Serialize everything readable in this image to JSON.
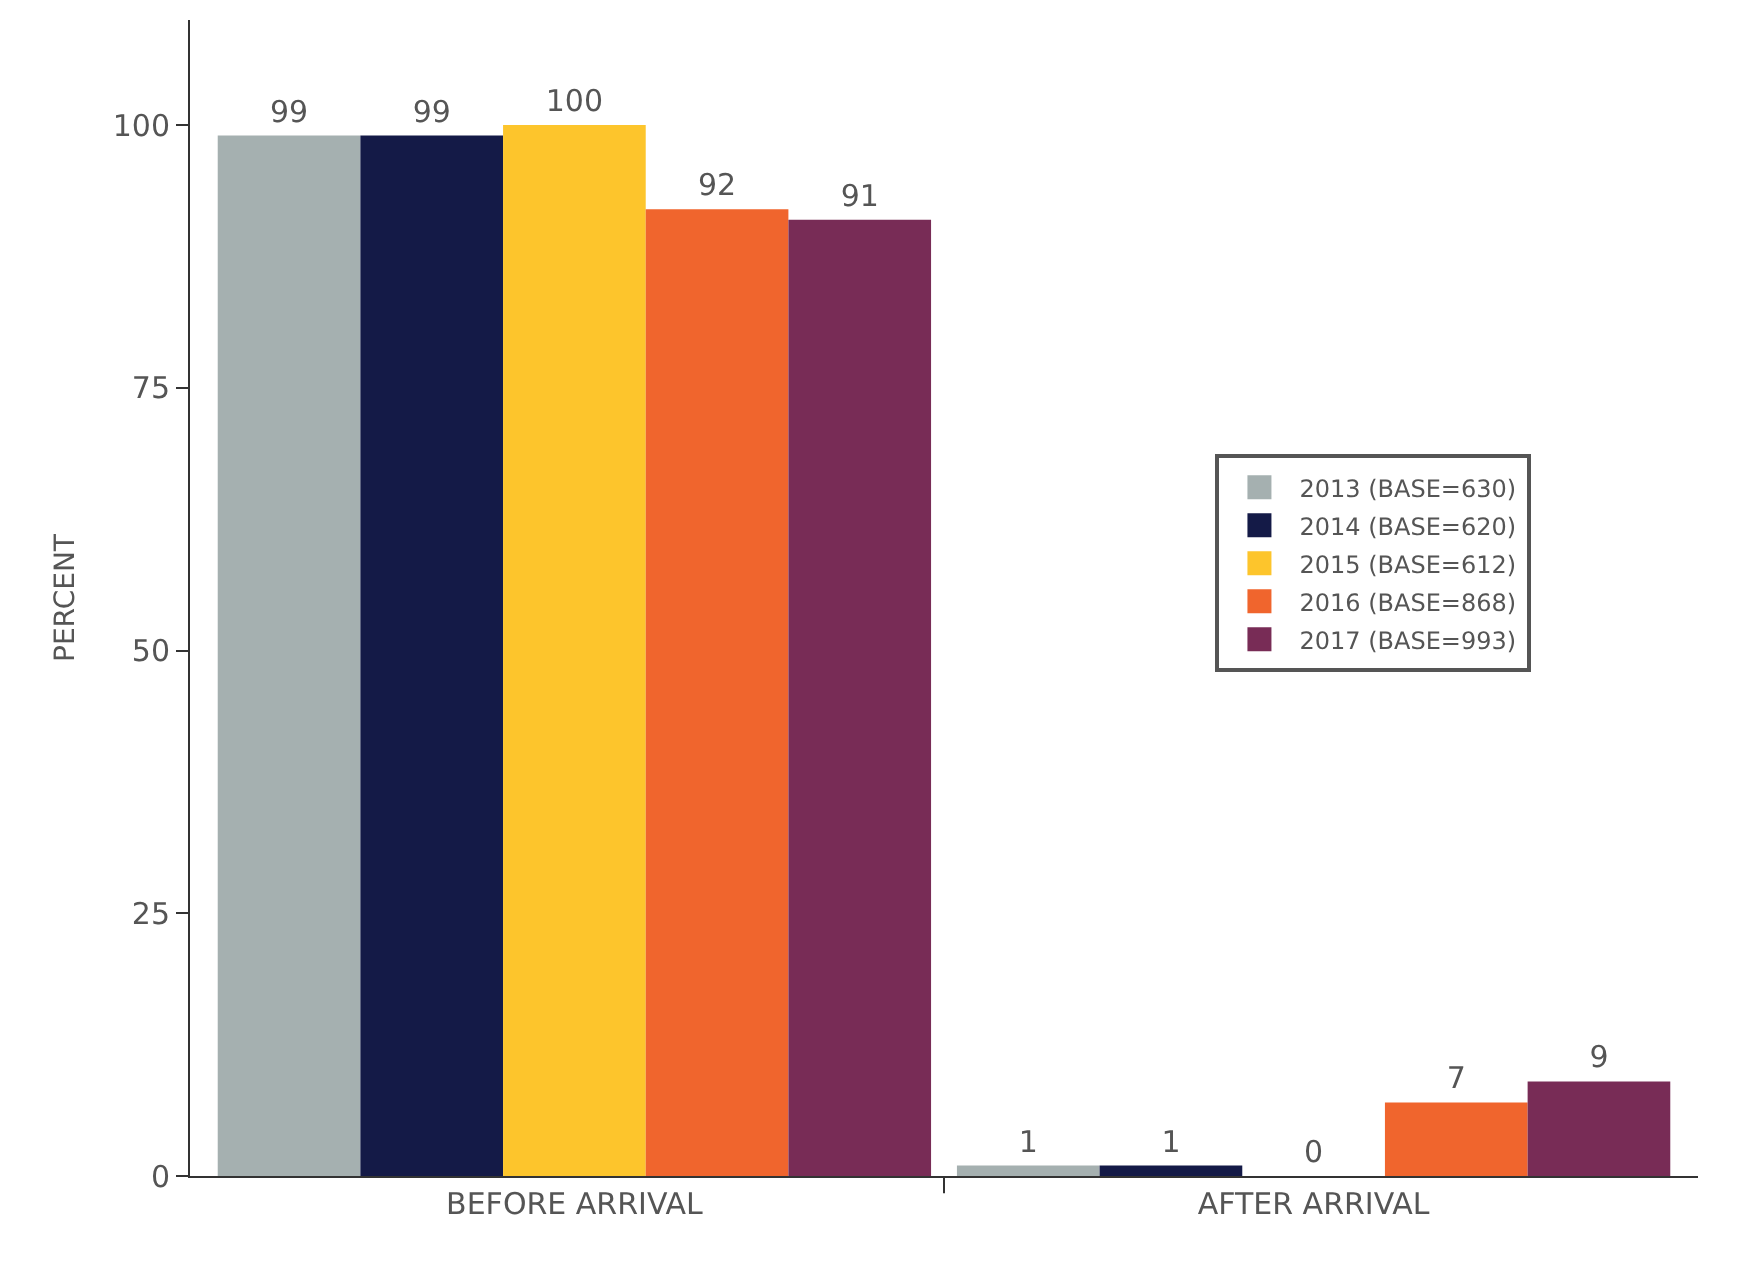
{
  "chart_data": {
    "type": "bar",
    "ylabel": "PERCENT",
    "categories": [
      "BEFORE ARRIVAL",
      "AFTER ARRIVAL"
    ],
    "series": [
      {
        "name": "2013 (BASE=630)",
        "color": "#a5b0b0",
        "values": [
          99,
          1
        ]
      },
      {
        "name": "2014 (BASE=620)",
        "color": "#141a47",
        "values": [
          99,
          1
        ]
      },
      {
        "name": "2015 (BASE=612)",
        "color": "#fdc52c",
        "values": [
          100,
          0
        ]
      },
      {
        "name": "2016 (BASE=868)",
        "color": "#f0652d",
        "values": [
          92,
          7
        ]
      },
      {
        "name": "2017 (BASE=993)",
        "color": "#782c56",
        "values": [
          91,
          9
        ]
      }
    ],
    "ylim": [
      0,
      110
    ],
    "yticks": [
      0,
      25,
      50,
      75,
      100
    ],
    "legend": "right",
    "data_labels": true
  }
}
